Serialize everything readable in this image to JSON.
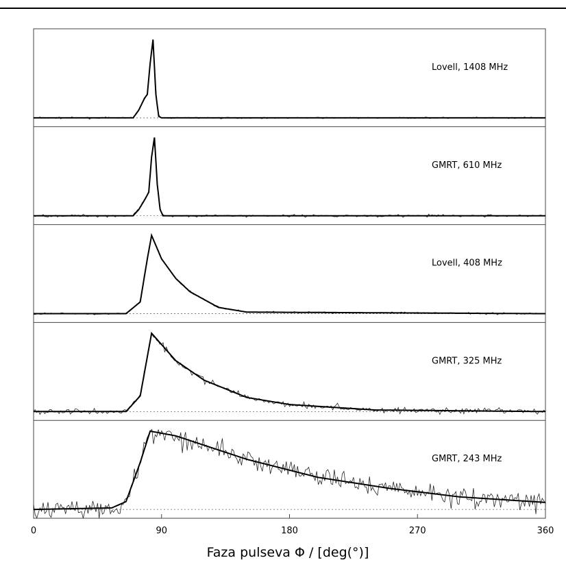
{
  "chart_data": {
    "type": "line",
    "xlabel": "Faza pulseva Φ / [deg(°)]",
    "xlim": [
      0,
      360
    ],
    "x_ticks": [
      "0",
      "90",
      "180",
      "270",
      "360"
    ],
    "panels": [
      {
        "label": "Lovell, 1408 MHz",
        "peak_phase": 84,
        "width": 1.8,
        "tau": 0.9,
        "precursor": true,
        "noise": 0.012,
        "fit": {
          "x": [
            0,
            70,
            74,
            78,
            80,
            82,
            84,
            86,
            88,
            90,
            360
          ],
          "y": [
            0,
            0,
            0.1,
            0.25,
            0.3,
            0.7,
            1.0,
            0.3,
            0.02,
            0,
            0
          ]
        }
      },
      {
        "label": "GMRT, 610 MHz",
        "peak_phase": 85,
        "width": 2.0,
        "tau": 1.5,
        "precursor": true,
        "noise": 0.02,
        "fit": {
          "x": [
            0,
            70,
            74,
            78,
            81,
            83,
            85,
            87,
            89,
            91,
            360
          ],
          "y": [
            0,
            0,
            0.08,
            0.2,
            0.3,
            0.75,
            1.0,
            0.4,
            0.08,
            0,
            0
          ]
        }
      },
      {
        "label": "Lovell, 408 MHz",
        "peak_phase": 83,
        "width": 3.5,
        "tau": 13,
        "precursor": false,
        "noise": 0.015,
        "fit": {
          "x": [
            0,
            65,
            75,
            80,
            83,
            90,
            100,
            110,
            130,
            150,
            360
          ],
          "y": [
            0,
            0,
            0.15,
            0.7,
            1.0,
            0.7,
            0.45,
            0.28,
            0.08,
            0.02,
            0
          ]
        }
      },
      {
        "label": "GMRT, 325 MHz",
        "peak_phase": 83,
        "width": 4.0,
        "tau": 35,
        "precursor": false,
        "noise": 0.05,
        "fit": {
          "x": [
            0,
            65,
            75,
            80,
            83,
            100,
            120,
            150,
            180,
            240,
            360
          ],
          "y": [
            0,
            0,
            0.2,
            0.7,
            1.0,
            0.65,
            0.4,
            0.18,
            0.09,
            0.02,
            0
          ]
        }
      },
      {
        "label": "GMRT, 243 MHz",
        "peak_phase": 82,
        "width": 5.0,
        "tau": 110,
        "precursor": false,
        "noise": 0.16,
        "fit": {
          "x": [
            0,
            55,
            65,
            75,
            82,
            100,
            150,
            200,
            250,
            300,
            360
          ],
          "y": [
            0,
            0.02,
            0.1,
            0.6,
            1.0,
            0.94,
            0.64,
            0.41,
            0.27,
            0.16,
            0.09
          ]
        }
      }
    ]
  }
}
